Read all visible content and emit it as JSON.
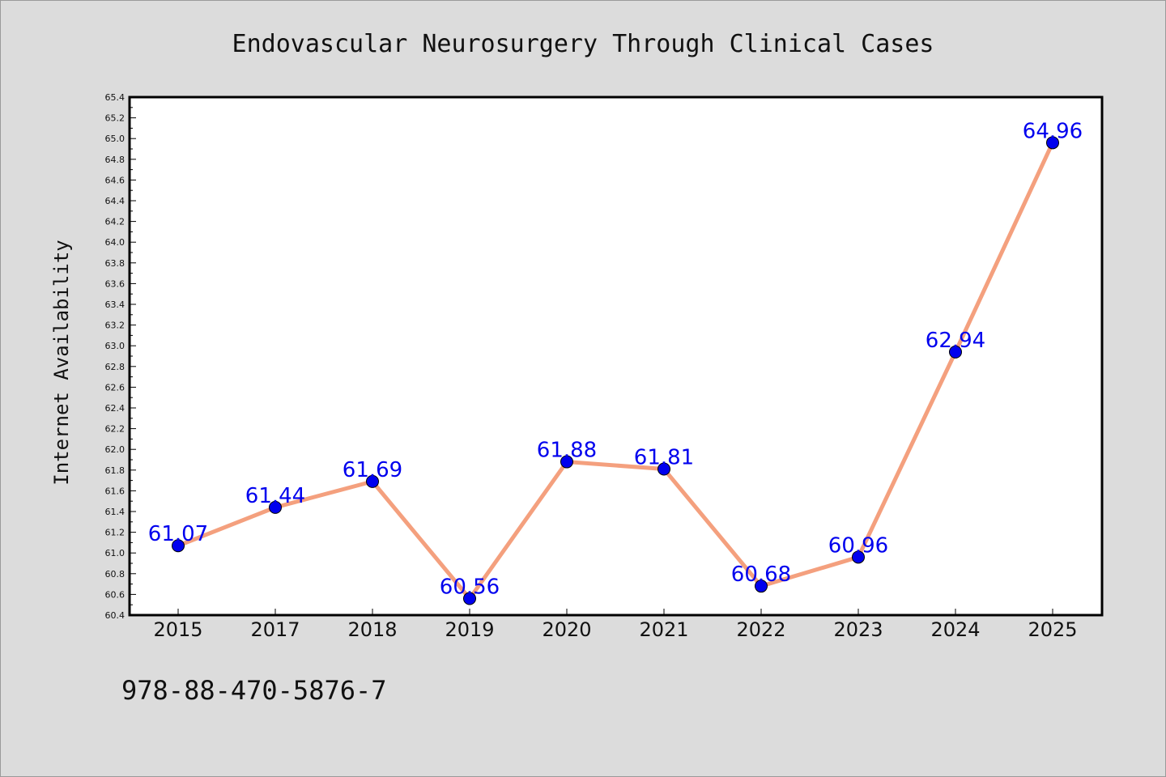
{
  "chart_data": {
    "type": "line",
    "title": "Endovascular Neurosurgery Through Clinical Cases",
    "xlabel": "",
    "ylabel": "Internet Availability",
    "categories": [
      "2015",
      "2017",
      "2018",
      "2019",
      "2020",
      "2021",
      "2022",
      "2023",
      "2024",
      "2025"
    ],
    "series": [
      {
        "values": [
          61.07,
          61.44,
          61.69,
          60.56,
          61.88,
          61.81,
          60.68,
          60.96,
          62.94,
          64.96
        ],
        "labels": [
          "61.07",
          "61.44",
          "61.69",
          "60.56",
          "61.88",
          "61.81",
          "60.68",
          "60.96",
          "62.94",
          "64.96"
        ]
      }
    ],
    "ylim": [
      60.4,
      65.4
    ],
    "yticks": [
      "60.4",
      "60.6",
      "60.8",
      "61.0",
      "61.2",
      "61.4",
      "61.6",
      "61.8",
      "62.0",
      "62.2",
      "62.4",
      "62.6",
      "62.8",
      "63.0",
      "63.2",
      "63.4",
      "63.6",
      "63.8",
      "64.0",
      "64.2",
      "64.4",
      "64.6",
      "64.8",
      "65.0",
      "65.2",
      "65.4"
    ],
    "grid": false,
    "legend": "none",
    "colors": {
      "line": "#f4a07e",
      "marker": "#0000ee",
      "label": "#0000ee",
      "background": "#dcdcdc",
      "plot_background": "#ffffff"
    }
  },
  "footer": {
    "text": "978-88-470-5876-7"
  }
}
